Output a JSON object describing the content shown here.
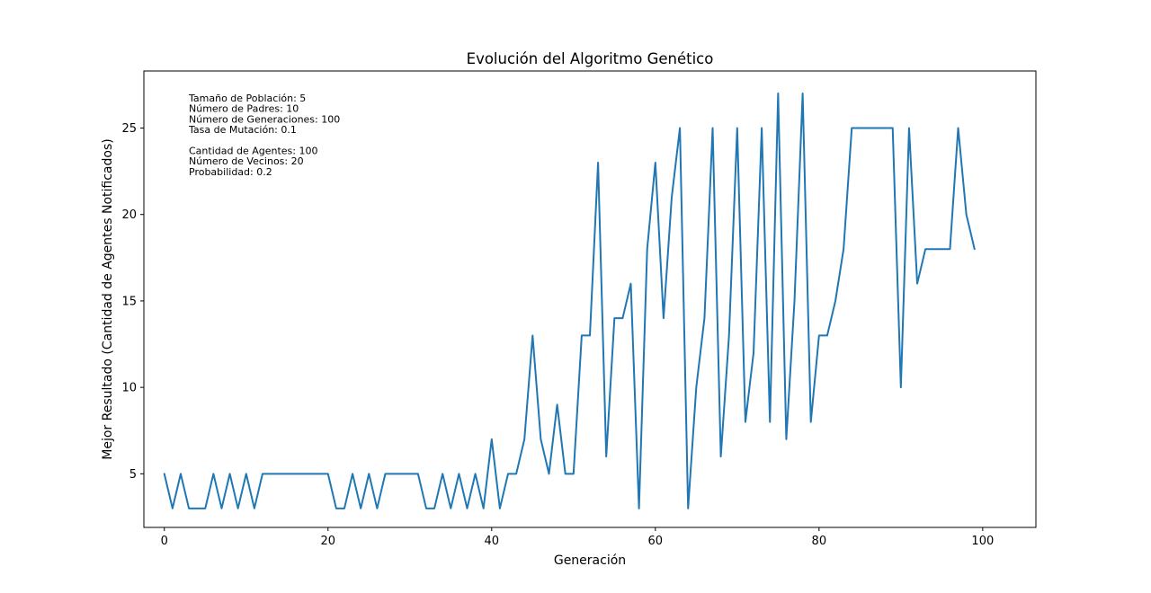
{
  "chart_data": {
    "type": "line",
    "title": "Evolución del Algoritmo Genético",
    "xlabel": "Generación",
    "ylabel": "Mejor Resultado (Cantidad de Agentes Notificados)",
    "xlim": [
      -2.5,
      106.5
    ],
    "ylim": [
      1.9,
      28.3
    ],
    "xticks": [
      0,
      20,
      40,
      60,
      80,
      100
    ],
    "yticks": [
      5,
      10,
      15,
      20,
      25
    ],
    "grid": false,
    "line_color": "#1f77b4",
    "annotations": [
      "Tamaño de Población: 5",
      "Número de Padres: 10",
      "Número de Generaciones: 100",
      "Tasa de Mutación: 0.1",
      "",
      "Cantidad de Agentes: 100",
      "Número de Vecinos: 20",
      "Probabilidad: 0.2"
    ],
    "x": [
      0,
      1,
      2,
      3,
      4,
      5,
      6,
      7,
      8,
      9,
      10,
      11,
      12,
      13,
      14,
      15,
      16,
      17,
      18,
      19,
      20,
      21,
      22,
      23,
      24,
      25,
      26,
      27,
      28,
      29,
      30,
      31,
      32,
      33,
      34,
      35,
      36,
      37,
      38,
      39,
      40,
      41,
      42,
      43,
      44,
      45,
      46,
      47,
      48,
      49,
      50,
      51,
      52,
      53,
      54,
      55,
      56,
      57,
      58,
      59,
      60,
      61,
      62,
      63,
      64,
      65,
      66,
      67,
      68,
      69,
      70,
      71,
      72,
      73,
      74,
      75,
      76,
      77,
      78,
      79,
      80,
      81,
      82,
      83,
      84,
      85,
      86,
      87,
      88,
      89,
      90,
      91,
      92,
      93,
      94,
      95,
      96,
      97,
      98,
      99
    ],
    "values": [
      5,
      3,
      5,
      3,
      3,
      3,
      5,
      3,
      5,
      3,
      5,
      3,
      5,
      5,
      5,
      5,
      5,
      5,
      5,
      5,
      5,
      3,
      3,
      5,
      3,
      5,
      3,
      5,
      5,
      5,
      5,
      5,
      3,
      3,
      5,
      3,
      5,
      3,
      5,
      3,
      7,
      3,
      5,
      5,
      7,
      13,
      7,
      5,
      9,
      5,
      5,
      13,
      13,
      23,
      6,
      14,
      14,
      16,
      3,
      18,
      23,
      14,
      21,
      25,
      3,
      10,
      14,
      25,
      6,
      13,
      25,
      8,
      12,
      25,
      8,
      27,
      7,
      15,
      27,
      8,
      13,
      13,
      15,
      18,
      25,
      25,
      25,
      25,
      25,
      25,
      10,
      25,
      16,
      18,
      18,
      18,
      18,
      25,
      20,
      18
    ]
  }
}
